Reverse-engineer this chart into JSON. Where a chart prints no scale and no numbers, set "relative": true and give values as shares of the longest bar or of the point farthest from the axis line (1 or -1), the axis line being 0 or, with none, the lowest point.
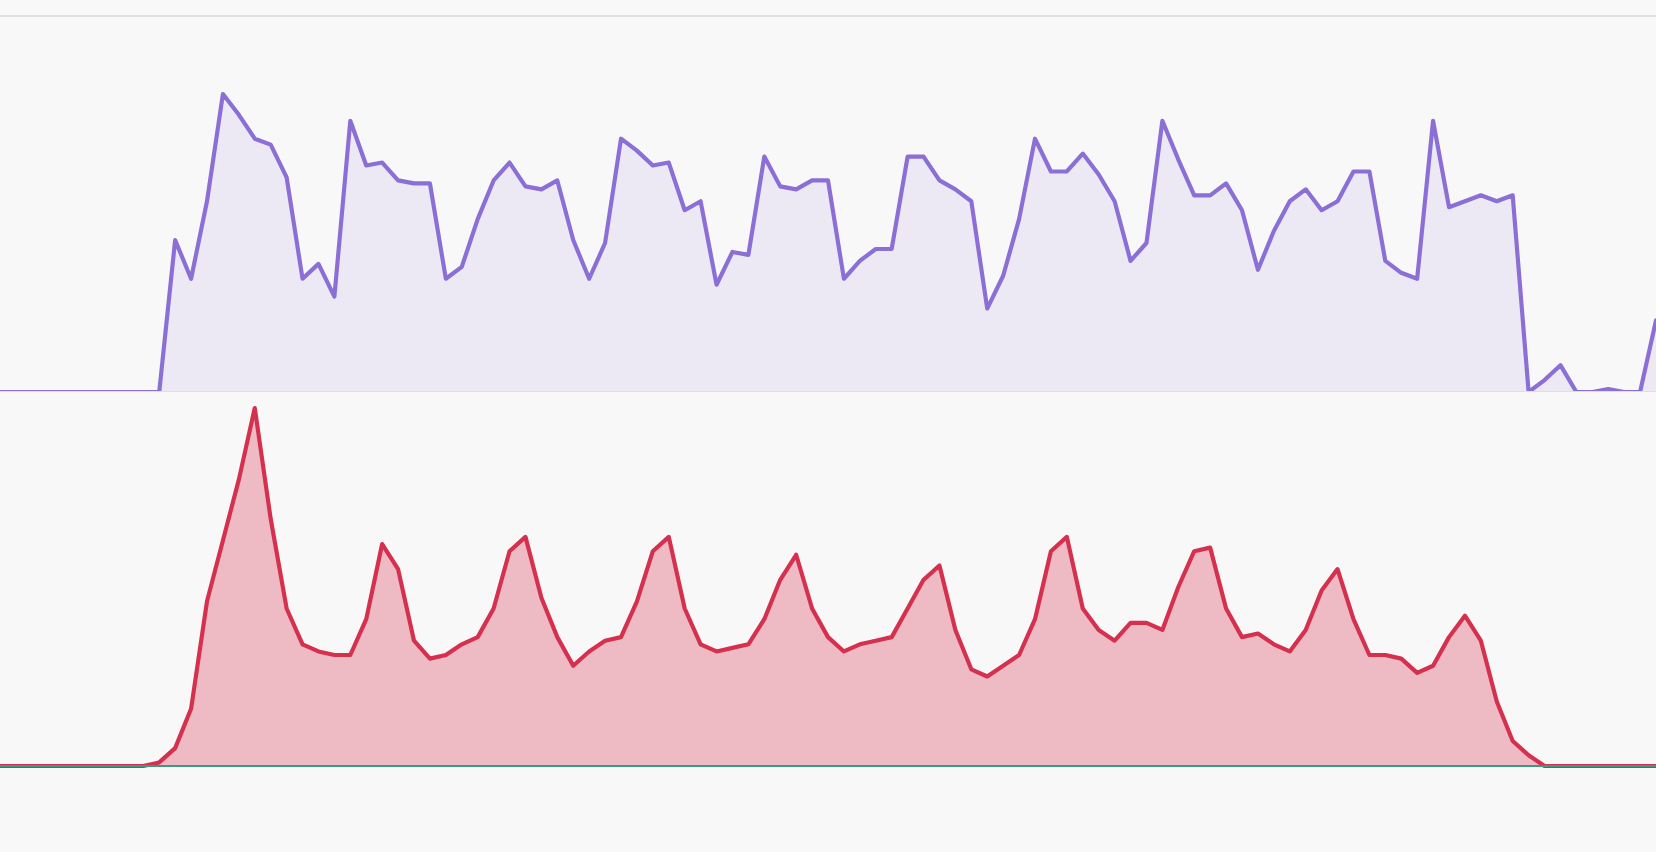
{
  "chart_data": [
    {
      "type": "area",
      "relative": true,
      "categories": [
        null,
        null,
        null,
        null,
        null,
        null,
        null,
        null,
        null,
        null,
        null,
        null,
        null,
        null,
        null,
        null,
        null,
        null,
        null,
        null,
        null,
        null,
        null,
        null,
        null,
        null,
        null,
        null,
        null,
        null,
        null,
        null,
        null,
        null,
        null,
        null,
        null,
        null,
        null,
        null,
        null,
        null,
        null,
        null,
        null,
        null,
        null,
        null,
        null,
        null,
        null,
        null,
        null,
        null,
        null,
        null,
        null,
        null,
        null,
        null,
        null,
        null,
        null,
        null,
        null,
        null,
        null,
        null,
        null,
        null,
        null,
        null,
        null,
        null,
        null,
        null,
        null,
        null,
        null,
        null,
        null,
        null,
        null,
        null,
        null,
        null,
        null,
        null,
        null,
        null,
        null,
        null,
        null,
        null,
        null,
        null,
        null,
        null,
        null,
        null,
        null,
        null,
        null,
        null,
        null
      ],
      "series": [
        {
          "color": "#8b6fd6",
          "values": [
            0,
            0,
            0,
            0,
            0,
            0,
            0,
            0,
            0,
            0,
            0,
            0.51,
            0.38,
            0.64,
            1,
            0.93,
            0.85,
            0.83,
            0.72,
            0.38,
            0.43,
            0.32,
            0.91,
            0.76,
            0.77,
            0.71,
            0.7,
            0.7,
            0.38,
            0.42,
            0.58,
            0.71,
            0.77,
            0.69,
            0.68,
            0.71,
            0.51,
            0.38,
            0.5,
            0.85,
            0.81,
            0.76,
            0.77,
            0.61,
            0.64,
            0.36,
            0.47,
            0.46,
            0.79,
            0.69,
            0.68,
            0.71,
            0.71,
            0.38,
            0.44,
            0.48,
            0.48,
            0.79,
            0.79,
            0.71,
            0.68,
            0.64,
            0.28,
            0.39,
            0.58,
            0.85,
            0.74,
            0.74,
            0.8,
            0.73,
            0.64,
            0.44,
            0.5,
            0.91,
            0.78,
            0.66,
            0.66,
            0.7,
            0.61,
            0.41,
            0.54,
            0.64,
            0.68,
            0.61,
            0.64,
            0.74,
            0.74,
            0.44,
            0.4,
            0.38,
            0.91,
            0.62,
            0.64,
            0.66,
            0.64,
            0.66,
            0,
            0.04,
            0.09,
            0,
            0,
            0.01,
            0,
            0,
            0.24
          ]
        }
      ]
    },
    {
      "type": "area",
      "relative": true,
      "categories": [
        null,
        null,
        null,
        null,
        null,
        null,
        null,
        null,
        null,
        null,
        null,
        null,
        null,
        null,
        null,
        null,
        null,
        null,
        null,
        null,
        null,
        null,
        null,
        null,
        null,
        null,
        null,
        null,
        null,
        null,
        null,
        null,
        null,
        null,
        null,
        null,
        null,
        null,
        null,
        null,
        null,
        null,
        null,
        null,
        null,
        null,
        null,
        null,
        null,
        null,
        null,
        null,
        null,
        null,
        null,
        null,
        null,
        null,
        null,
        null,
        null,
        null,
        null,
        null,
        null,
        null,
        null,
        null,
        null,
        null,
        null,
        null,
        null,
        null,
        null,
        null,
        null,
        null,
        null,
        null,
        null,
        null,
        null,
        null,
        null,
        null,
        null,
        null,
        null,
        null,
        null,
        null,
        null,
        null,
        null,
        null,
        null,
        null,
        null,
        null,
        null,
        null,
        null,
        null,
        null
      ],
      "series": [
        {
          "color": "#d6304f",
          "values": [
            0,
            0,
            0,
            0,
            0,
            0,
            0,
            0,
            0,
            0,
            0.01,
            0.05,
            0.16,
            0.46,
            0.63,
            0.8,
            1,
            0.69,
            0.44,
            0.34,
            0.32,
            0.31,
            0.31,
            0.41,
            0.62,
            0.55,
            0.35,
            0.3,
            0.31,
            0.34,
            0.36,
            0.44,
            0.6,
            0.64,
            0.47,
            0.36,
            0.28,
            0.32,
            0.35,
            0.36,
            0.46,
            0.6,
            0.64,
            0.44,
            0.34,
            0.32,
            0.33,
            0.34,
            0.41,
            0.52,
            0.59,
            0.44,
            0.36,
            0.32,
            0.34,
            0.35,
            0.36,
            0.44,
            0.52,
            0.56,
            0.38,
            0.27,
            0.25,
            0.28,
            0.31,
            0.41,
            0.6,
            0.64,
            0.44,
            0.38,
            0.35,
            0.4,
            0.4,
            0.38,
            0.5,
            0.6,
            0.61,
            0.44,
            0.36,
            0.37,
            0.34,
            0.32,
            0.38,
            0.49,
            0.55,
            0.41,
            0.31,
            0.31,
            0.3,
            0.26,
            0.28,
            0.36,
            0.42,
            0.35,
            0.18,
            0.07,
            0.03,
            0,
            0,
            0,
            0,
            0,
            0,
            0,
            0
          ]
        }
      ]
    }
  ]
}
